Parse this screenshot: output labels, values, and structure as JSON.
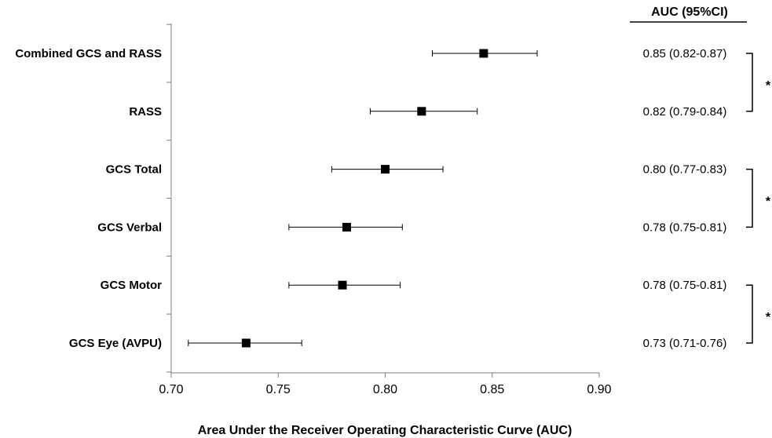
{
  "chart_data": {
    "type": "scatter",
    "subtype": "forest-plot",
    "xlabel": "Area Under the Receiver Operating Characteristic Curve (AUC)",
    "xlim": [
      0.7,
      0.9
    ],
    "xticks": [
      "0.70",
      "0.75",
      "0.80",
      "0.85",
      "0.90"
    ],
    "grid": false,
    "right_column_header": "AUC (95%CI)",
    "rows": [
      {
        "label": "Combined GCS and RASS",
        "auc": 0.846,
        "lo": 0.822,
        "hi": 0.871,
        "text": "0.85 (0.82-0.87)"
      },
      {
        "label": "RASS",
        "auc": 0.817,
        "lo": 0.793,
        "hi": 0.843,
        "text": "0.82 (0.79-0.84)"
      },
      {
        "label": "GCS Total",
        "auc": 0.8,
        "lo": 0.775,
        "hi": 0.827,
        "text": "0.80 (0.77-0.83)"
      },
      {
        "label": "GCS Verbal",
        "auc": 0.782,
        "lo": 0.755,
        "hi": 0.808,
        "text": "0.78 (0.75-0.81)"
      },
      {
        "label": "GCS Motor",
        "auc": 0.78,
        "lo": 0.755,
        "hi": 0.807,
        "text": "0.78 (0.75-0.81)"
      },
      {
        "label": "GCS Eye (AVPU)",
        "auc": 0.735,
        "lo": 0.708,
        "hi": 0.761,
        "text": "0.73 (0.71-0.76)"
      }
    ],
    "comparisons": [
      {
        "rows": [
          0,
          1
        ],
        "marker": "*"
      },
      {
        "rows": [
          2,
          3
        ],
        "marker": "*"
      },
      {
        "rows": [
          4,
          5
        ],
        "marker": "*"
      }
    ]
  }
}
